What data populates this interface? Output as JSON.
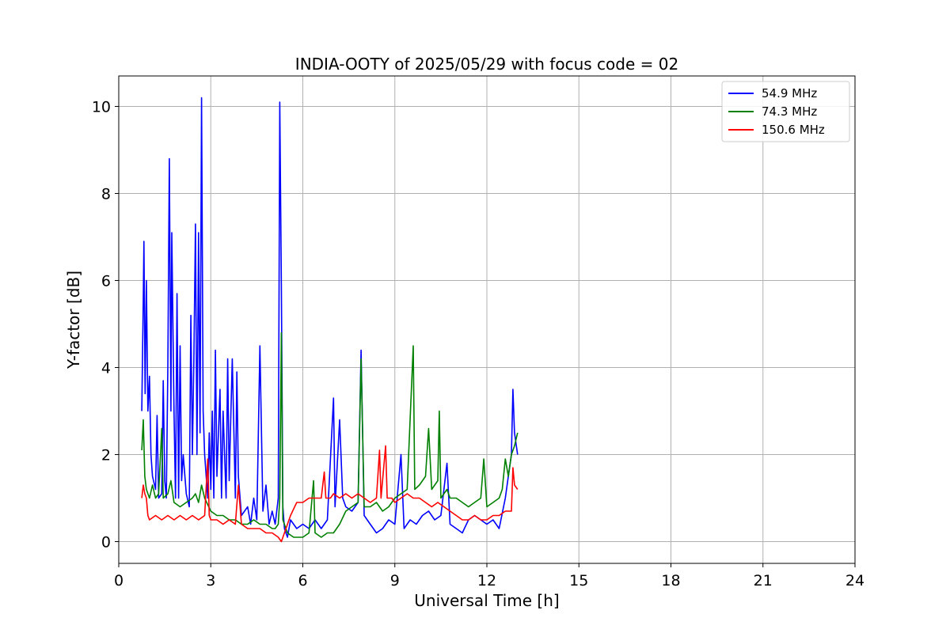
{
  "chart_data": {
    "type": "line",
    "title": "INDIA-OOTY of 2025/05/29 with focus code = 02",
    "xlabel": "Universal Time [h]",
    "ylabel": "Y-factor [dB]",
    "xlim": [
      0,
      24
    ],
    "ylim": [
      -0.5,
      10.7
    ],
    "xticks": [
      "0",
      "3",
      "6",
      "9",
      "12",
      "15",
      "18",
      "21",
      "24"
    ],
    "yticks": [
      "0",
      "2",
      "4",
      "6",
      "8",
      "10"
    ],
    "grid": true,
    "legend": "top-right",
    "series": [
      {
        "name": " 54.9 MHz",
        "color": "#0000ff",
        "points": [
          [
            0.75,
            3.0
          ],
          [
            0.8,
            5.6
          ],
          [
            0.82,
            6.9
          ],
          [
            0.86,
            3.4
          ],
          [
            0.9,
            6.0
          ],
          [
            0.95,
            3.0
          ],
          [
            1.0,
            3.8
          ],
          [
            1.05,
            2.0
          ],
          [
            1.1,
            1.5
          ],
          [
            1.2,
            1.2
          ],
          [
            1.25,
            2.9
          ],
          [
            1.3,
            1.0
          ],
          [
            1.4,
            1.1
          ],
          [
            1.45,
            3.7
          ],
          [
            1.5,
            1.4
          ],
          [
            1.55,
            1.0
          ],
          [
            1.6,
            4.0
          ],
          [
            1.65,
            8.8
          ],
          [
            1.7,
            3.0
          ],
          [
            1.73,
            7.1
          ],
          [
            1.8,
            3.0
          ],
          [
            1.85,
            1.0
          ],
          [
            1.9,
            5.7
          ],
          [
            1.95,
            1.0
          ],
          [
            2.0,
            4.5
          ],
          [
            2.05,
            1.4
          ],
          [
            2.1,
            2.0
          ],
          [
            2.2,
            1.1
          ],
          [
            2.3,
            0.8
          ],
          [
            2.35,
            5.2
          ],
          [
            2.4,
            2.0
          ],
          [
            2.45,
            4.2
          ],
          [
            2.5,
            7.3
          ],
          [
            2.55,
            2.0
          ],
          [
            2.6,
            7.1
          ],
          [
            2.65,
            2.5
          ],
          [
            2.7,
            10.2
          ],
          [
            2.75,
            3.0
          ],
          [
            2.8,
            2.0
          ],
          [
            2.9,
            1.0
          ],
          [
            2.95,
            2.5
          ],
          [
            3.0,
            1.2
          ],
          [
            3.05,
            3.0
          ],
          [
            3.1,
            1.0
          ],
          [
            3.15,
            4.4
          ],
          [
            3.2,
            1.5
          ],
          [
            3.3,
            3.5
          ],
          [
            3.35,
            1.0
          ],
          [
            3.4,
            3.0
          ],
          [
            3.5,
            1.0
          ],
          [
            3.55,
            4.2
          ],
          [
            3.6,
            1.4
          ],
          [
            3.7,
            4.2
          ],
          [
            3.8,
            1.0
          ],
          [
            3.85,
            3.9
          ],
          [
            3.9,
            1.5
          ],
          [
            4.0,
            0.6
          ],
          [
            4.2,
            0.8
          ],
          [
            4.3,
            0.4
          ],
          [
            4.4,
            1.0
          ],
          [
            4.5,
            0.5
          ],
          [
            4.6,
            4.5
          ],
          [
            4.7,
            0.7
          ],
          [
            4.8,
            1.3
          ],
          [
            4.9,
            0.4
          ],
          [
            5.0,
            0.7
          ],
          [
            5.1,
            0.4
          ],
          [
            5.2,
            1.0
          ],
          [
            5.25,
            10.1
          ],
          [
            5.3,
            5.9
          ],
          [
            5.35,
            0.8
          ],
          [
            5.4,
            0.3
          ],
          [
            5.5,
            0.1
          ],
          [
            5.6,
            0.5
          ],
          [
            5.8,
            0.3
          ],
          [
            6.0,
            0.4
          ],
          [
            6.2,
            0.3
          ],
          [
            6.4,
            0.5
          ],
          [
            6.6,
            0.3
          ],
          [
            6.8,
            0.5
          ],
          [
            7.0,
            3.3
          ],
          [
            7.05,
            0.8
          ],
          [
            7.2,
            2.8
          ],
          [
            7.3,
            1.0
          ],
          [
            7.4,
            0.8
          ],
          [
            7.6,
            0.7
          ],
          [
            7.8,
            0.9
          ],
          [
            7.9,
            4.4
          ],
          [
            8.0,
            0.6
          ],
          [
            8.2,
            0.4
          ],
          [
            8.4,
            0.2
          ],
          [
            8.6,
            0.3
          ],
          [
            8.8,
            0.5
          ],
          [
            9.0,
            0.4
          ],
          [
            9.2,
            2.0
          ],
          [
            9.3,
            0.3
          ],
          [
            9.5,
            0.5
          ],
          [
            9.7,
            0.4
          ],
          [
            9.9,
            0.6
          ],
          [
            10.1,
            0.7
          ],
          [
            10.3,
            0.5
          ],
          [
            10.5,
            0.6
          ],
          [
            10.7,
            1.8
          ],
          [
            10.8,
            0.4
          ],
          [
            11.0,
            0.3
          ],
          [
            11.2,
            0.2
          ],
          [
            11.4,
            0.5
          ],
          [
            11.6,
            0.6
          ],
          [
            11.8,
            0.5
          ],
          [
            12.0,
            0.4
          ],
          [
            12.2,
            0.5
          ],
          [
            12.4,
            0.3
          ],
          [
            12.6,
            1.0
          ],
          [
            12.7,
            1.5
          ],
          [
            12.8,
            2.0
          ],
          [
            12.85,
            3.5
          ],
          [
            12.9,
            2.5
          ],
          [
            13.0,
            2.0
          ]
        ]
      },
      {
        "name": " 74.3 MHz",
        "color": "#008000",
        "points": [
          [
            0.75,
            2.1
          ],
          [
            0.8,
            2.8
          ],
          [
            0.85,
            1.5
          ],
          [
            0.9,
            1.2
          ],
          [
            1.0,
            1.0
          ],
          [
            1.1,
            1.3
          ],
          [
            1.2,
            1.0
          ],
          [
            1.3,
            1.1
          ],
          [
            1.4,
            2.6
          ],
          [
            1.45,
            1.0
          ],
          [
            1.6,
            1.1
          ],
          [
            1.7,
            1.4
          ],
          [
            1.8,
            0.9
          ],
          [
            2.0,
            0.8
          ],
          [
            2.2,
            0.9
          ],
          [
            2.4,
            1.0
          ],
          [
            2.5,
            1.1
          ],
          [
            2.6,
            0.9
          ],
          [
            2.7,
            1.3
          ],
          [
            2.8,
            1.0
          ],
          [
            3.0,
            0.7
          ],
          [
            3.2,
            0.6
          ],
          [
            3.4,
            0.6
          ],
          [
            3.6,
            0.5
          ],
          [
            3.8,
            0.5
          ],
          [
            4.0,
            0.4
          ],
          [
            4.2,
            0.4
          ],
          [
            4.4,
            0.5
          ],
          [
            4.6,
            0.4
          ],
          [
            4.8,
            0.4
          ],
          [
            5.0,
            0.3
          ],
          [
            5.1,
            0.3
          ],
          [
            5.2,
            0.4
          ],
          [
            5.25,
            1.0
          ],
          [
            5.3,
            4.8
          ],
          [
            5.35,
            0.5
          ],
          [
            5.5,
            0.2
          ],
          [
            5.7,
            0.1
          ],
          [
            6.0,
            0.1
          ],
          [
            6.2,
            0.2
          ],
          [
            6.35,
            1.4
          ],
          [
            6.4,
            0.2
          ],
          [
            6.6,
            0.1
          ],
          [
            6.8,
            0.2
          ],
          [
            7.0,
            0.2
          ],
          [
            7.2,
            0.4
          ],
          [
            7.4,
            0.7
          ],
          [
            7.6,
            0.8
          ],
          [
            7.8,
            0.9
          ],
          [
            7.9,
            4.2
          ],
          [
            8.0,
            0.8
          ],
          [
            8.2,
            0.8
          ],
          [
            8.4,
            0.9
          ],
          [
            8.6,
            0.7
          ],
          [
            8.8,
            0.8
          ],
          [
            9.0,
            1.0
          ],
          [
            9.2,
            1.1
          ],
          [
            9.4,
            1.2
          ],
          [
            9.6,
            4.5
          ],
          [
            9.65,
            1.2
          ],
          [
            9.8,
            1.3
          ],
          [
            10.0,
            1.5
          ],
          [
            10.1,
            2.6
          ],
          [
            10.2,
            1.2
          ],
          [
            10.4,
            1.4
          ],
          [
            10.45,
            3.0
          ],
          [
            10.5,
            1.0
          ],
          [
            10.7,
            1.2
          ],
          [
            10.8,
            1.0
          ],
          [
            11.0,
            1.0
          ],
          [
            11.2,
            0.9
          ],
          [
            11.4,
            0.8
          ],
          [
            11.6,
            0.9
          ],
          [
            11.8,
            1.0
          ],
          [
            11.9,
            1.9
          ],
          [
            12.0,
            0.8
          ],
          [
            12.2,
            0.9
          ],
          [
            12.4,
            1.0
          ],
          [
            12.5,
            1.2
          ],
          [
            12.6,
            1.9
          ],
          [
            12.7,
            1.5
          ],
          [
            12.8,
            2.0
          ],
          [
            12.9,
            2.2
          ],
          [
            13.0,
            2.5
          ]
        ]
      },
      {
        "name": " 150.6 MHz",
        "color": "#ff0000",
        "points": [
          [
            0.75,
            1.0
          ],
          [
            0.8,
            1.3
          ],
          [
            0.85,
            1.1
          ],
          [
            0.9,
            1.0
          ],
          [
            0.95,
            0.6
          ],
          [
            1.0,
            0.5
          ],
          [
            1.2,
            0.6
          ],
          [
            1.4,
            0.5
          ],
          [
            1.6,
            0.6
          ],
          [
            1.8,
            0.5
          ],
          [
            2.0,
            0.6
          ],
          [
            2.2,
            0.5
          ],
          [
            2.4,
            0.6
          ],
          [
            2.6,
            0.5
          ],
          [
            2.8,
            0.6
          ],
          [
            2.9,
            1.9
          ],
          [
            2.95,
            0.6
          ],
          [
            3.0,
            0.5
          ],
          [
            3.2,
            0.5
          ],
          [
            3.4,
            0.4
          ],
          [
            3.6,
            0.5
          ],
          [
            3.8,
            0.4
          ],
          [
            3.9,
            1.3
          ],
          [
            4.0,
            0.4
          ],
          [
            4.2,
            0.3
          ],
          [
            4.4,
            0.3
          ],
          [
            4.6,
            0.3
          ],
          [
            4.8,
            0.2
          ],
          [
            5.0,
            0.2
          ],
          [
            5.2,
            0.1
          ],
          [
            5.3,
            0.0
          ],
          [
            5.4,
            0.2
          ],
          [
            5.6,
            0.6
          ],
          [
            5.8,
            0.9
          ],
          [
            6.0,
            0.9
          ],
          [
            6.2,
            1.0
          ],
          [
            6.4,
            1.0
          ],
          [
            6.6,
            1.0
          ],
          [
            6.7,
            1.6
          ],
          [
            6.75,
            1.0
          ],
          [
            6.9,
            1.0
          ],
          [
            7.0,
            1.1
          ],
          [
            7.2,
            1.0
          ],
          [
            7.4,
            1.1
          ],
          [
            7.6,
            1.0
          ],
          [
            7.8,
            1.1
          ],
          [
            8.0,
            1.0
          ],
          [
            8.2,
            0.9
          ],
          [
            8.4,
            1.0
          ],
          [
            8.5,
            2.1
          ],
          [
            8.55,
            1.0
          ],
          [
            8.7,
            2.2
          ],
          [
            8.75,
            1.0
          ],
          [
            8.9,
            1.0
          ],
          [
            9.0,
            0.9
          ],
          [
            9.2,
            1.0
          ],
          [
            9.4,
            1.1
          ],
          [
            9.6,
            1.0
          ],
          [
            9.8,
            1.0
          ],
          [
            10.0,
            0.9
          ],
          [
            10.2,
            0.8
          ],
          [
            10.4,
            0.9
          ],
          [
            10.6,
            0.8
          ],
          [
            10.8,
            0.7
          ],
          [
            11.0,
            0.6
          ],
          [
            11.2,
            0.5
          ],
          [
            11.4,
            0.5
          ],
          [
            11.6,
            0.6
          ],
          [
            11.8,
            0.5
          ],
          [
            12.0,
            0.5
          ],
          [
            12.2,
            0.6
          ],
          [
            12.4,
            0.6
          ],
          [
            12.6,
            0.7
          ],
          [
            12.8,
            0.7
          ],
          [
            12.85,
            1.7
          ],
          [
            12.9,
            1.3
          ],
          [
            13.0,
            1.2
          ]
        ]
      }
    ]
  }
}
